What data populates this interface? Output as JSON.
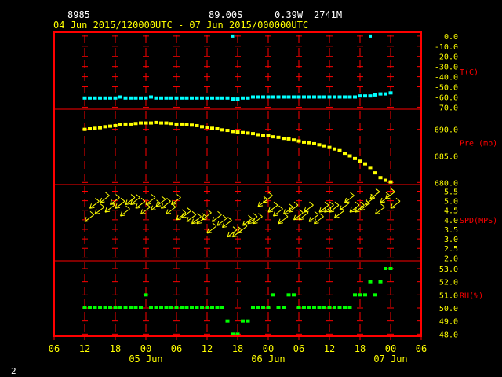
{
  "header": {
    "station_id": "8985",
    "lat": "89.00S",
    "lon": "0.39W",
    "elevation": "2741M",
    "time_range": "04 Jun 2015/120000UTC - 07 Jun 2015/000000UTC"
  },
  "footer": {
    "page_number": "2"
  },
  "colors": {
    "frame": "#ff0000",
    "tick_labels": "#ffff00",
    "temperature": "#00ffff",
    "pressure": "#ffff00",
    "wind": "#ffff00",
    "rh": "#00ff00",
    "header_text": "#ffffff",
    "grid": "#ff0000"
  },
  "chart_data": {
    "type": "scatter",
    "x_axis": {
      "tick_labels": [
        "06",
        "12",
        "18",
        "00",
        "06",
        "12",
        "18",
        "00",
        "06",
        "12",
        "18",
        "00",
        "06"
      ],
      "tick_hours": [
        -6,
        0,
        6,
        12,
        18,
        24,
        30,
        36,
        42,
        48,
        54,
        60,
        66
      ],
      "date_labels": [
        {
          "label": "05 Jun",
          "hour": 12
        },
        {
          "label": "06 Jun",
          "hour": 36
        },
        {
          "label": "07 Jun",
          "hour": 60
        }
      ],
      "range_hours": [
        -6,
        66
      ]
    },
    "panels": [
      {
        "id": "temperature",
        "label": "T(C)",
        "ticks": [
          "0.0",
          "-10.0",
          "-20.0",
          "-30.0",
          "-40.0",
          "-50.0",
          "-60.0",
          "-70.0"
        ],
        "tick_values": [
          0,
          -10,
          -20,
          -30,
          -40,
          -50,
          -60,
          -70
        ],
        "range": [
          -72,
          3
        ],
        "points_hours": [
          0,
          1,
          2,
          3,
          4,
          5,
          6,
          7,
          8,
          9,
          10,
          11,
          12,
          13,
          14,
          15,
          16,
          17,
          18,
          19,
          20,
          21,
          22,
          23,
          24,
          25,
          26,
          27,
          28,
          29,
          30,
          31,
          32,
          33,
          34,
          35,
          36,
          37,
          38,
          39,
          40,
          41,
          42,
          43,
          44,
          45,
          46,
          47,
          48,
          49,
          50,
          51,
          52,
          53,
          54,
          55,
          56,
          57,
          58,
          59,
          60
        ],
        "values": [
          -61,
          -61,
          -61,
          -61,
          -61,
          -61,
          -61,
          -60,
          -61,
          -61,
          -61,
          -61,
          -61,
          -60,
          -61,
          -61,
          -61,
          -61,
          -61,
          -61,
          -61,
          -61,
          -61,
          -61,
          -61,
          -61,
          -61,
          -61,
          -61,
          -62,
          -62,
          -61,
          -61,
          -60,
          -60,
          -60,
          -60,
          -60,
          -60,
          -60,
          -60,
          -60,
          -60,
          -60,
          -60,
          -60,
          -60,
          -60,
          -60,
          -60,
          -60,
          -60,
          -60,
          -60,
          -59,
          -59,
          -59,
          -58,
          -57,
          -57,
          -56
        ],
        "outliers": [
          {
            "hour": 29,
            "value": 0
          },
          {
            "hour": 56,
            "value": 0
          }
        ]
      },
      {
        "id": "pressure",
        "label": "Pre (mb)",
        "ticks": [
          "690.0",
          "685.0",
          "680.0"
        ],
        "tick_values": [
          690,
          685,
          680
        ],
        "range": [
          679.6,
          693.8
        ],
        "points_hours": [
          0,
          1,
          2,
          3,
          4,
          5,
          6,
          7,
          8,
          9,
          10,
          11,
          12,
          13,
          14,
          15,
          16,
          17,
          18,
          19,
          20,
          21,
          22,
          23,
          24,
          25,
          26,
          27,
          28,
          29,
          30,
          31,
          32,
          33,
          34,
          35,
          36,
          37,
          38,
          39,
          40,
          41,
          42,
          43,
          44,
          45,
          46,
          47,
          48,
          49,
          50,
          51,
          52,
          53,
          54,
          55,
          56,
          57,
          58,
          59,
          60
        ],
        "values": [
          690.0,
          690.1,
          690.2,
          690.3,
          690.5,
          690.6,
          690.7,
          690.9,
          691.0,
          691.0,
          691.1,
          691.2,
          691.2,
          691.2,
          691.3,
          691.2,
          691.2,
          691.1,
          691.0,
          691.0,
          690.9,
          690.8,
          690.7,
          690.5,
          690.4,
          690.2,
          690.1,
          689.9,
          689.8,
          689.6,
          689.5,
          689.4,
          689.3,
          689.2,
          689.0,
          688.9,
          688.8,
          688.6,
          688.5,
          688.3,
          688.2,
          688.0,
          687.8,
          687.6,
          687.5,
          687.3,
          687.1,
          686.9,
          686.6,
          686.3,
          686.0,
          685.5,
          685.0,
          684.5,
          684.0,
          683.5,
          682.8,
          681.8,
          680.9,
          680.4,
          680.1
        ]
      },
      {
        "id": "wind",
        "label": "SPD(MPS)",
        "ticks": [
          "5.5",
          "5.0",
          "4.5",
          "4.0",
          "3.5",
          "3.0",
          "2.5",
          "2.0"
        ],
        "tick_values": [
          5.5,
          5.0,
          4.5,
          4.0,
          3.5,
          3.0,
          2.5,
          2.0
        ],
        "range": [
          1.85,
          5.85
        ],
        "points_hours": [
          0,
          1,
          2,
          3,
          4,
          5,
          6,
          7,
          8,
          9,
          10,
          11,
          12,
          13,
          14,
          15,
          16,
          17,
          18,
          19,
          20,
          21,
          22,
          23,
          24,
          25,
          26,
          27,
          28,
          29,
          30,
          31,
          32,
          33,
          34,
          35,
          36,
          37,
          38,
          39,
          40,
          41,
          42,
          43,
          44,
          45,
          46,
          47,
          48,
          49,
          50,
          51,
          52,
          53,
          54,
          55,
          56,
          57,
          58,
          59,
          60
        ],
        "values": [
          3.9,
          4.6,
          4.3,
          4.9,
          4.4,
          4.8,
          4.6,
          4.2,
          4.8,
          4.8,
          4.6,
          4.3,
          4.8,
          4.5,
          4.7,
          4.6,
          4.3,
          4.8,
          4.0,
          4.1,
          3.9,
          3.8,
          3.8,
          4.0,
          3.3,
          3.9,
          3.7,
          3.6,
          3.1,
          3.1,
          3.3,
          3.7,
          3.8,
          3.8,
          4.7,
          4.9,
          4.4,
          4.2,
          3.8,
          4.3,
          4.4,
          4.0,
          4.0,
          4.4,
          3.9,
          3.8,
          4.4,
          4.4,
          4.4,
          4.1,
          4.5,
          4.9,
          4.4,
          4.4,
          4.5,
          4.8,
          5.1,
          4.3,
          4.9,
          5.1,
          4.6
        ],
        "barb_direction": "from-NE"
      },
      {
        "id": "rh",
        "label": "RH(%)",
        "ticks": [
          "53.0",
          "52.0",
          "51.0",
          "50.0",
          "49.0",
          "48.0"
        ],
        "tick_values": [
          53,
          52,
          51,
          50,
          49,
          48
        ],
        "range": [
          47.9,
          53.6
        ],
        "points_hours": [
          0,
          1,
          2,
          3,
          4,
          5,
          6,
          7,
          8,
          9,
          10,
          11,
          12,
          13,
          14,
          15,
          16,
          17,
          18,
          19,
          20,
          21,
          22,
          23,
          24,
          25,
          26,
          27,
          28,
          29,
          30,
          31,
          32,
          33,
          34,
          35,
          36,
          37,
          38,
          39,
          40,
          41,
          42,
          43,
          44,
          45,
          46,
          47,
          48,
          49,
          50,
          51,
          52,
          53,
          54,
          55,
          56,
          57,
          58,
          59,
          60
        ],
        "values": [
          50,
          50,
          50,
          50,
          50,
          50,
          50,
          50,
          50,
          50,
          50,
          50,
          51,
          50,
          50,
          50,
          50,
          50,
          50,
          50,
          50,
          50,
          50,
          50,
          50,
          50,
          50,
          50,
          49,
          48,
          48,
          49,
          49,
          50,
          50,
          50,
          50,
          51,
          50,
          50,
          51,
          51,
          50,
          50,
          50,
          50,
          50,
          50,
          50,
          50,
          50,
          50,
          50,
          51,
          51,
          51,
          52,
          51,
          52,
          53,
          53
        ]
      }
    ]
  }
}
